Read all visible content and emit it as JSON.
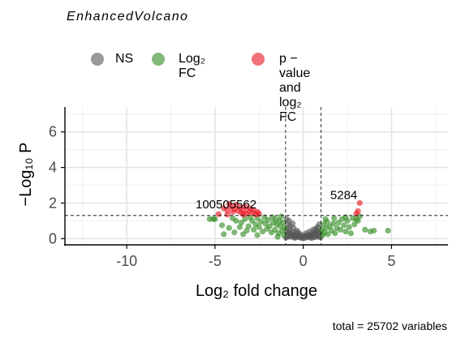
{
  "subtitle": "EnhancedVolcano",
  "caption": "total = 25702 variables",
  "legend": [
    {
      "key": "ns",
      "label": "NS",
      "color": "#555555"
    },
    {
      "key": "fc",
      "label": "Log₂ FC",
      "color": "#2e8b1e"
    },
    {
      "key": "pfc",
      "label": "p − value and log₂ FC",
      "color": "#e8141e"
    }
  ],
  "chart_data": {
    "type": "scatter",
    "title": "",
    "subtitle": "EnhancedVolcano",
    "xlabel": "Log₂ fold change",
    "ylabel": "−Log₁₀ P",
    "xlim": [
      -13.5,
      8.2
    ],
    "ylim": [
      -0.35,
      7.4
    ],
    "xticks": [
      -10,
      -5,
      0,
      5
    ],
    "xtick_labels": [
      "-10",
      "-5",
      "0",
      "5"
    ],
    "yticks": [
      0,
      2,
      4,
      6
    ],
    "ytick_labels": [
      "0",
      "2",
      "4",
      "6"
    ],
    "grid": true,
    "legend_position": "top",
    "cutoffs": {
      "fc": [
        -1,
        1
      ],
      "p": 1.3
    },
    "series": [
      {
        "name": "NS",
        "color": "#555555",
        "points": [
          [
            -0.05,
            0.02
          ],
          [
            0.05,
            0.03
          ],
          [
            -0.15,
            0.05
          ],
          [
            0.15,
            0.06
          ],
          [
            -0.25,
            0.08
          ],
          [
            0.25,
            0.09
          ],
          [
            -0.35,
            0.12
          ],
          [
            0.35,
            0.13
          ],
          [
            -0.45,
            0.16
          ],
          [
            0.45,
            0.17
          ],
          [
            -0.55,
            0.2
          ],
          [
            0.55,
            0.22
          ],
          [
            -0.65,
            0.26
          ],
          [
            0.65,
            0.27
          ],
          [
            -0.75,
            0.32
          ],
          [
            0.75,
            0.3
          ],
          [
            -0.85,
            0.38
          ],
          [
            0.85,
            0.34
          ],
          [
            -0.95,
            0.45
          ],
          [
            0.95,
            0.38
          ],
          [
            -0.2,
            0.18
          ],
          [
            0.2,
            0.2
          ],
          [
            -0.4,
            0.3
          ],
          [
            0.4,
            0.25
          ],
          [
            -0.6,
            0.4
          ],
          [
            0.6,
            0.35
          ],
          [
            -0.8,
            0.55
          ],
          [
            0.8,
            0.45
          ],
          [
            -0.3,
            0.35
          ],
          [
            0.3,
            0.1
          ],
          [
            -0.5,
            0.05
          ],
          [
            0.5,
            0.05
          ],
          [
            -0.7,
            0.1
          ],
          [
            0.7,
            0.12
          ],
          [
            -0.9,
            0.2
          ],
          [
            0.9,
            0.15
          ],
          [
            -0.1,
            0.12
          ],
          [
            0.1,
            0.15
          ],
          [
            -0.55,
            0.6
          ],
          [
            0.55,
            0.5
          ],
          [
            -0.75,
            0.7
          ],
          [
            0.7,
            0.55
          ],
          [
            -0.9,
            0.8
          ],
          [
            -0.35,
            0.45
          ],
          [
            0.35,
            0.4
          ],
          [
            -0.65,
            0.15
          ],
          [
            0.65,
            0.08
          ],
          [
            -0.85,
            0.1
          ],
          [
            0.85,
            0.1
          ],
          [
            -0.45,
            0.05
          ],
          [
            0.45,
            0.04
          ],
          [
            -0.98,
            0.05
          ],
          [
            0.98,
            0.07
          ],
          [
            -0.15,
            0.25
          ],
          [
            0.15,
            0.3
          ],
          [
            -0.95,
            1.1
          ],
          [
            -0.8,
            1.0
          ],
          [
            0.9,
            0.8
          ],
          [
            0.8,
            0.65
          ],
          [
            -0.6,
            0.85
          ]
        ]
      },
      {
        "name": "Log₂ FC",
        "color": "#2e8b1e",
        "points": [
          [
            -1.05,
            0.6
          ],
          [
            -1.1,
            0.2
          ],
          [
            -1.15,
            0.9
          ],
          [
            -1.2,
            0.45
          ],
          [
            -1.3,
            0.7
          ],
          [
            -1.35,
            1.0
          ],
          [
            -1.4,
            0.3
          ],
          [
            -1.5,
            0.8
          ],
          [
            -1.55,
            1.1
          ],
          [
            -1.6,
            0.5
          ],
          [
            -1.7,
            0.9
          ],
          [
            -1.75,
            1.2
          ],
          [
            -1.8,
            0.35
          ],
          [
            -1.9,
            0.7
          ],
          [
            -2.0,
            1.05
          ],
          [
            -2.05,
            0.55
          ],
          [
            -2.15,
            0.85
          ],
          [
            -2.2,
            1.2
          ],
          [
            -2.3,
            0.4
          ],
          [
            -2.4,
            0.95
          ],
          [
            -2.5,
            0.65
          ],
          [
            -2.6,
            1.15
          ],
          [
            -2.7,
            0.8
          ],
          [
            -2.8,
            0.5
          ],
          [
            -2.9,
            1.0
          ],
          [
            -3.0,
            1.2
          ],
          [
            -3.1,
            0.7
          ],
          [
            -3.2,
            0.45
          ],
          [
            -3.3,
            1.1
          ],
          [
            -3.5,
            0.9
          ],
          [
            -3.6,
            0.65
          ],
          [
            -3.8,
            1.0
          ],
          [
            -4.0,
            1.15
          ],
          [
            -4.2,
            0.6
          ],
          [
            -4.5,
            0.25
          ],
          [
            -4.6,
            0.75
          ],
          [
            -5.0,
            1.1
          ],
          [
            -5.1,
            1.1
          ],
          [
            -5.3,
            1.1
          ],
          [
            -3.9,
            0.35
          ],
          [
            -3.4,
            0.25
          ],
          [
            -2.6,
            0.2
          ],
          [
            -1.25,
            1.25
          ],
          [
            -1.45,
            0.1
          ],
          [
            1.05,
            0.5
          ],
          [
            1.1,
            0.2
          ],
          [
            1.15,
            0.8
          ],
          [
            1.2,
            0.35
          ],
          [
            1.3,
            0.6
          ],
          [
            1.35,
            0.95
          ],
          [
            1.4,
            0.25
          ],
          [
            1.5,
            0.7
          ],
          [
            1.6,
            0.45
          ],
          [
            1.7,
            0.85
          ],
          [
            1.75,
            1.15
          ],
          [
            1.8,
            0.3
          ],
          [
            1.9,
            0.6
          ],
          [
            2.0,
            0.9
          ],
          [
            2.1,
            0.5
          ],
          [
            2.2,
            1.1
          ],
          [
            2.3,
            0.75
          ],
          [
            2.4,
            0.4
          ],
          [
            2.5,
            1.0
          ],
          [
            2.6,
            0.65
          ],
          [
            2.7,
            0.3
          ],
          [
            2.8,
            1.15
          ],
          [
            2.9,
            0.8
          ],
          [
            3.0,
            1.1
          ],
          [
            3.1,
            1.0
          ],
          [
            3.2,
            1.25
          ],
          [
            2.4,
            1.2
          ],
          [
            1.25,
            1.1
          ],
          [
            3.5,
            0.5
          ],
          [
            3.8,
            0.4
          ],
          [
            4.0,
            0.45
          ],
          [
            4.8,
            0.45
          ]
        ]
      },
      {
        "name": "p − value and log₂ FC",
        "color": "#e8141e",
        "points": [
          [
            -2.5,
            1.4
          ],
          [
            -2.6,
            1.5
          ],
          [
            -2.7,
            1.35
          ],
          [
            -2.8,
            1.6
          ],
          [
            -2.9,
            1.45
          ],
          [
            -3.0,
            1.7
          ],
          [
            -3.1,
            1.55
          ],
          [
            -3.2,
            1.4
          ],
          [
            -3.3,
            1.8
          ],
          [
            -3.4,
            1.6
          ],
          [
            -3.5,
            1.45
          ],
          [
            -3.6,
            1.75
          ],
          [
            -3.7,
            1.55
          ],
          [
            -3.8,
            1.9
          ],
          [
            -3.9,
            1.65
          ],
          [
            -4.0,
            1.5
          ],
          [
            -4.1,
            1.8
          ],
          [
            -4.2,
            1.95
          ],
          [
            -4.3,
            1.6
          ],
          [
            -4.5,
            1.7
          ],
          [
            -4.3,
            1.35
          ],
          [
            -3.4,
            1.35
          ],
          [
            -4.8,
            1.38
          ],
          [
            3.0,
            1.4
          ],
          [
            3.1,
            1.55
          ],
          [
            3.2,
            2.0
          ]
        ]
      }
    ],
    "labels": [
      {
        "text": "100505562",
        "x": -3.8,
        "y": 1.3
      },
      {
        "text": "5284",
        "x": 3.0,
        "y": 1.9
      }
    ]
  }
}
